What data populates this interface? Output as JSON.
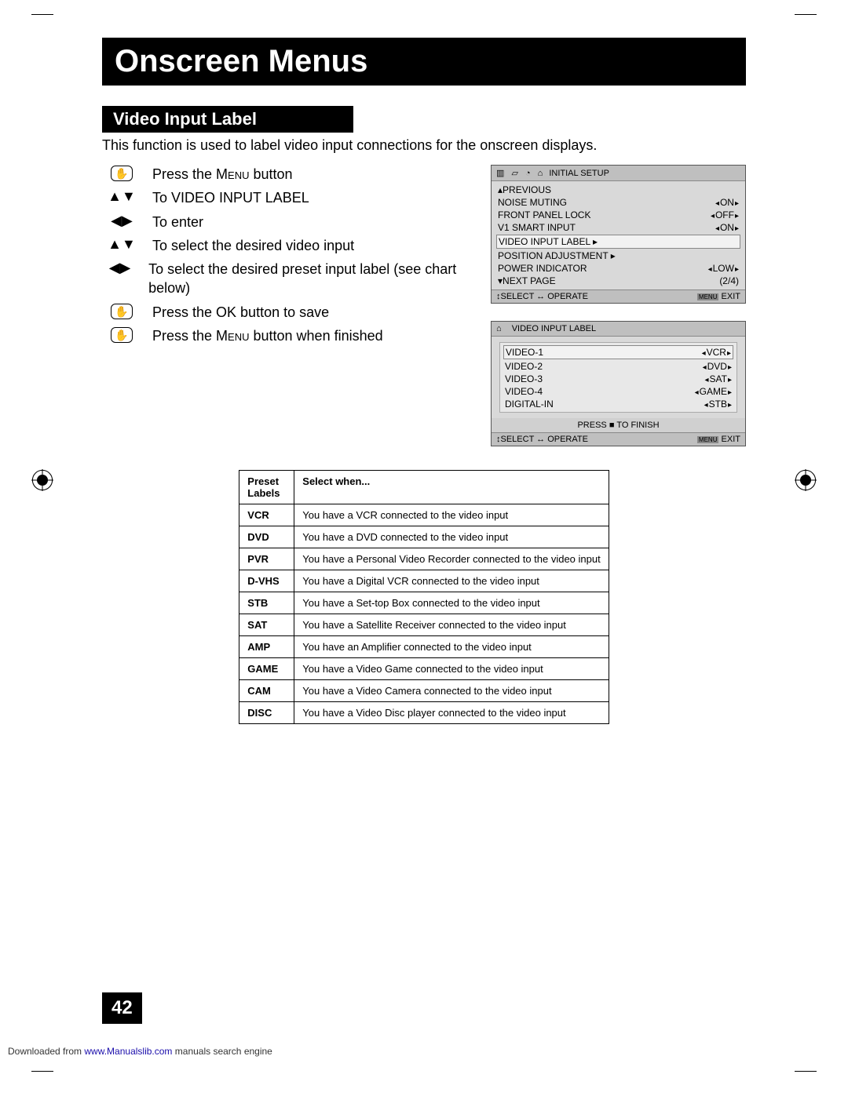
{
  "page_title": "Onscreen Menus",
  "section_title": "Video Input Label",
  "intro": "This function is used to label video input connections for the onscreen displays.",
  "steps": [
    {
      "icon": "hand",
      "text_parts": [
        "Press the ",
        "Menu",
        " button"
      ]
    },
    {
      "icon": "updown",
      "text": "To VIDEO INPUT LABEL"
    },
    {
      "icon": "leftright",
      "text": "To enter"
    },
    {
      "icon": "updown",
      "text": "To select the desired video input"
    },
    {
      "icon": "leftright",
      "text": "To select the desired preset input label (see chart below)"
    },
    {
      "icon": "hand",
      "text": "Press the OK button to save"
    },
    {
      "icon": "hand",
      "text_parts": [
        "Press the ",
        "Menu",
        " button when finished"
      ]
    }
  ],
  "osd1": {
    "header_label": "INITIAL SETUP",
    "rows": [
      {
        "label": "▴PREVIOUS",
        "val": ""
      },
      {
        "label": "NOISE MUTING",
        "val": "ON"
      },
      {
        "label": "FRONT PANEL LOCK",
        "val": "OFF"
      },
      {
        "label": "V1 SMART INPUT",
        "val": "ON"
      },
      {
        "label": "VIDEO INPUT LABEL ▸",
        "val": "",
        "hl": true
      },
      {
        "label": "POSITION ADJUSTMENT ▸",
        "val": ""
      },
      {
        "label": "POWER INDICATOR",
        "val": "LOW"
      },
      {
        "label": "▾NEXT PAGE",
        "val_plain": "(2/4)"
      }
    ],
    "footer_left": "↕SELECT ↔ OPERATE",
    "footer_right_menu": "MENU",
    "footer_right": "EXIT"
  },
  "osd2": {
    "header_label": "VIDEO INPUT LABEL",
    "rows": [
      {
        "label": "VIDEO-1",
        "val": "VCR",
        "hl": true
      },
      {
        "label": "VIDEO-2",
        "val": "DVD"
      },
      {
        "label": "VIDEO-3",
        "val": "SAT"
      },
      {
        "label": "VIDEO-4",
        "val": "GAME"
      },
      {
        "label": "DIGITAL-IN",
        "val": "STB"
      }
    ],
    "subfooter": "PRESS ■ TO FINISH",
    "footer_left": "↕SELECT ↔ OPERATE",
    "footer_right_menu": "MENU",
    "footer_right": "EXIT"
  },
  "preset_table": {
    "headers": [
      "Preset Labels",
      "Select when..."
    ],
    "rows": [
      [
        "VCR",
        "You have a VCR connected to the video input"
      ],
      [
        "DVD",
        "You have a DVD connected to the video input"
      ],
      [
        "PVR",
        "You have a Personal Video Recorder connected to the video input"
      ],
      [
        "D-VHS",
        "You have a Digital VCR connected to the video input"
      ],
      [
        "STB",
        "You have a Set-top Box connected to the video input"
      ],
      [
        "SAT",
        "You have a Satellite Receiver connected to the video input"
      ],
      [
        "AMP",
        "You have an Amplifier connected to the video input"
      ],
      [
        "GAME",
        "You have a Video Game connected to the video input"
      ],
      [
        "CAM",
        "You have a Video Camera connected to the video input"
      ],
      [
        "DISC",
        "You have a Video Disc player connected to the video input"
      ]
    ]
  },
  "page_number": "42",
  "footer_prefix": "Downloaded from ",
  "footer_link": "www.Manualslib.com",
  "footer_suffix": "  manuals search engine",
  "colors": {
    "black": "#000000",
    "white": "#ffffff",
    "osd_bg": "#d9d9d9",
    "osd_header": "#bfbfbf",
    "osd_hl": "#f2f2f2"
  }
}
